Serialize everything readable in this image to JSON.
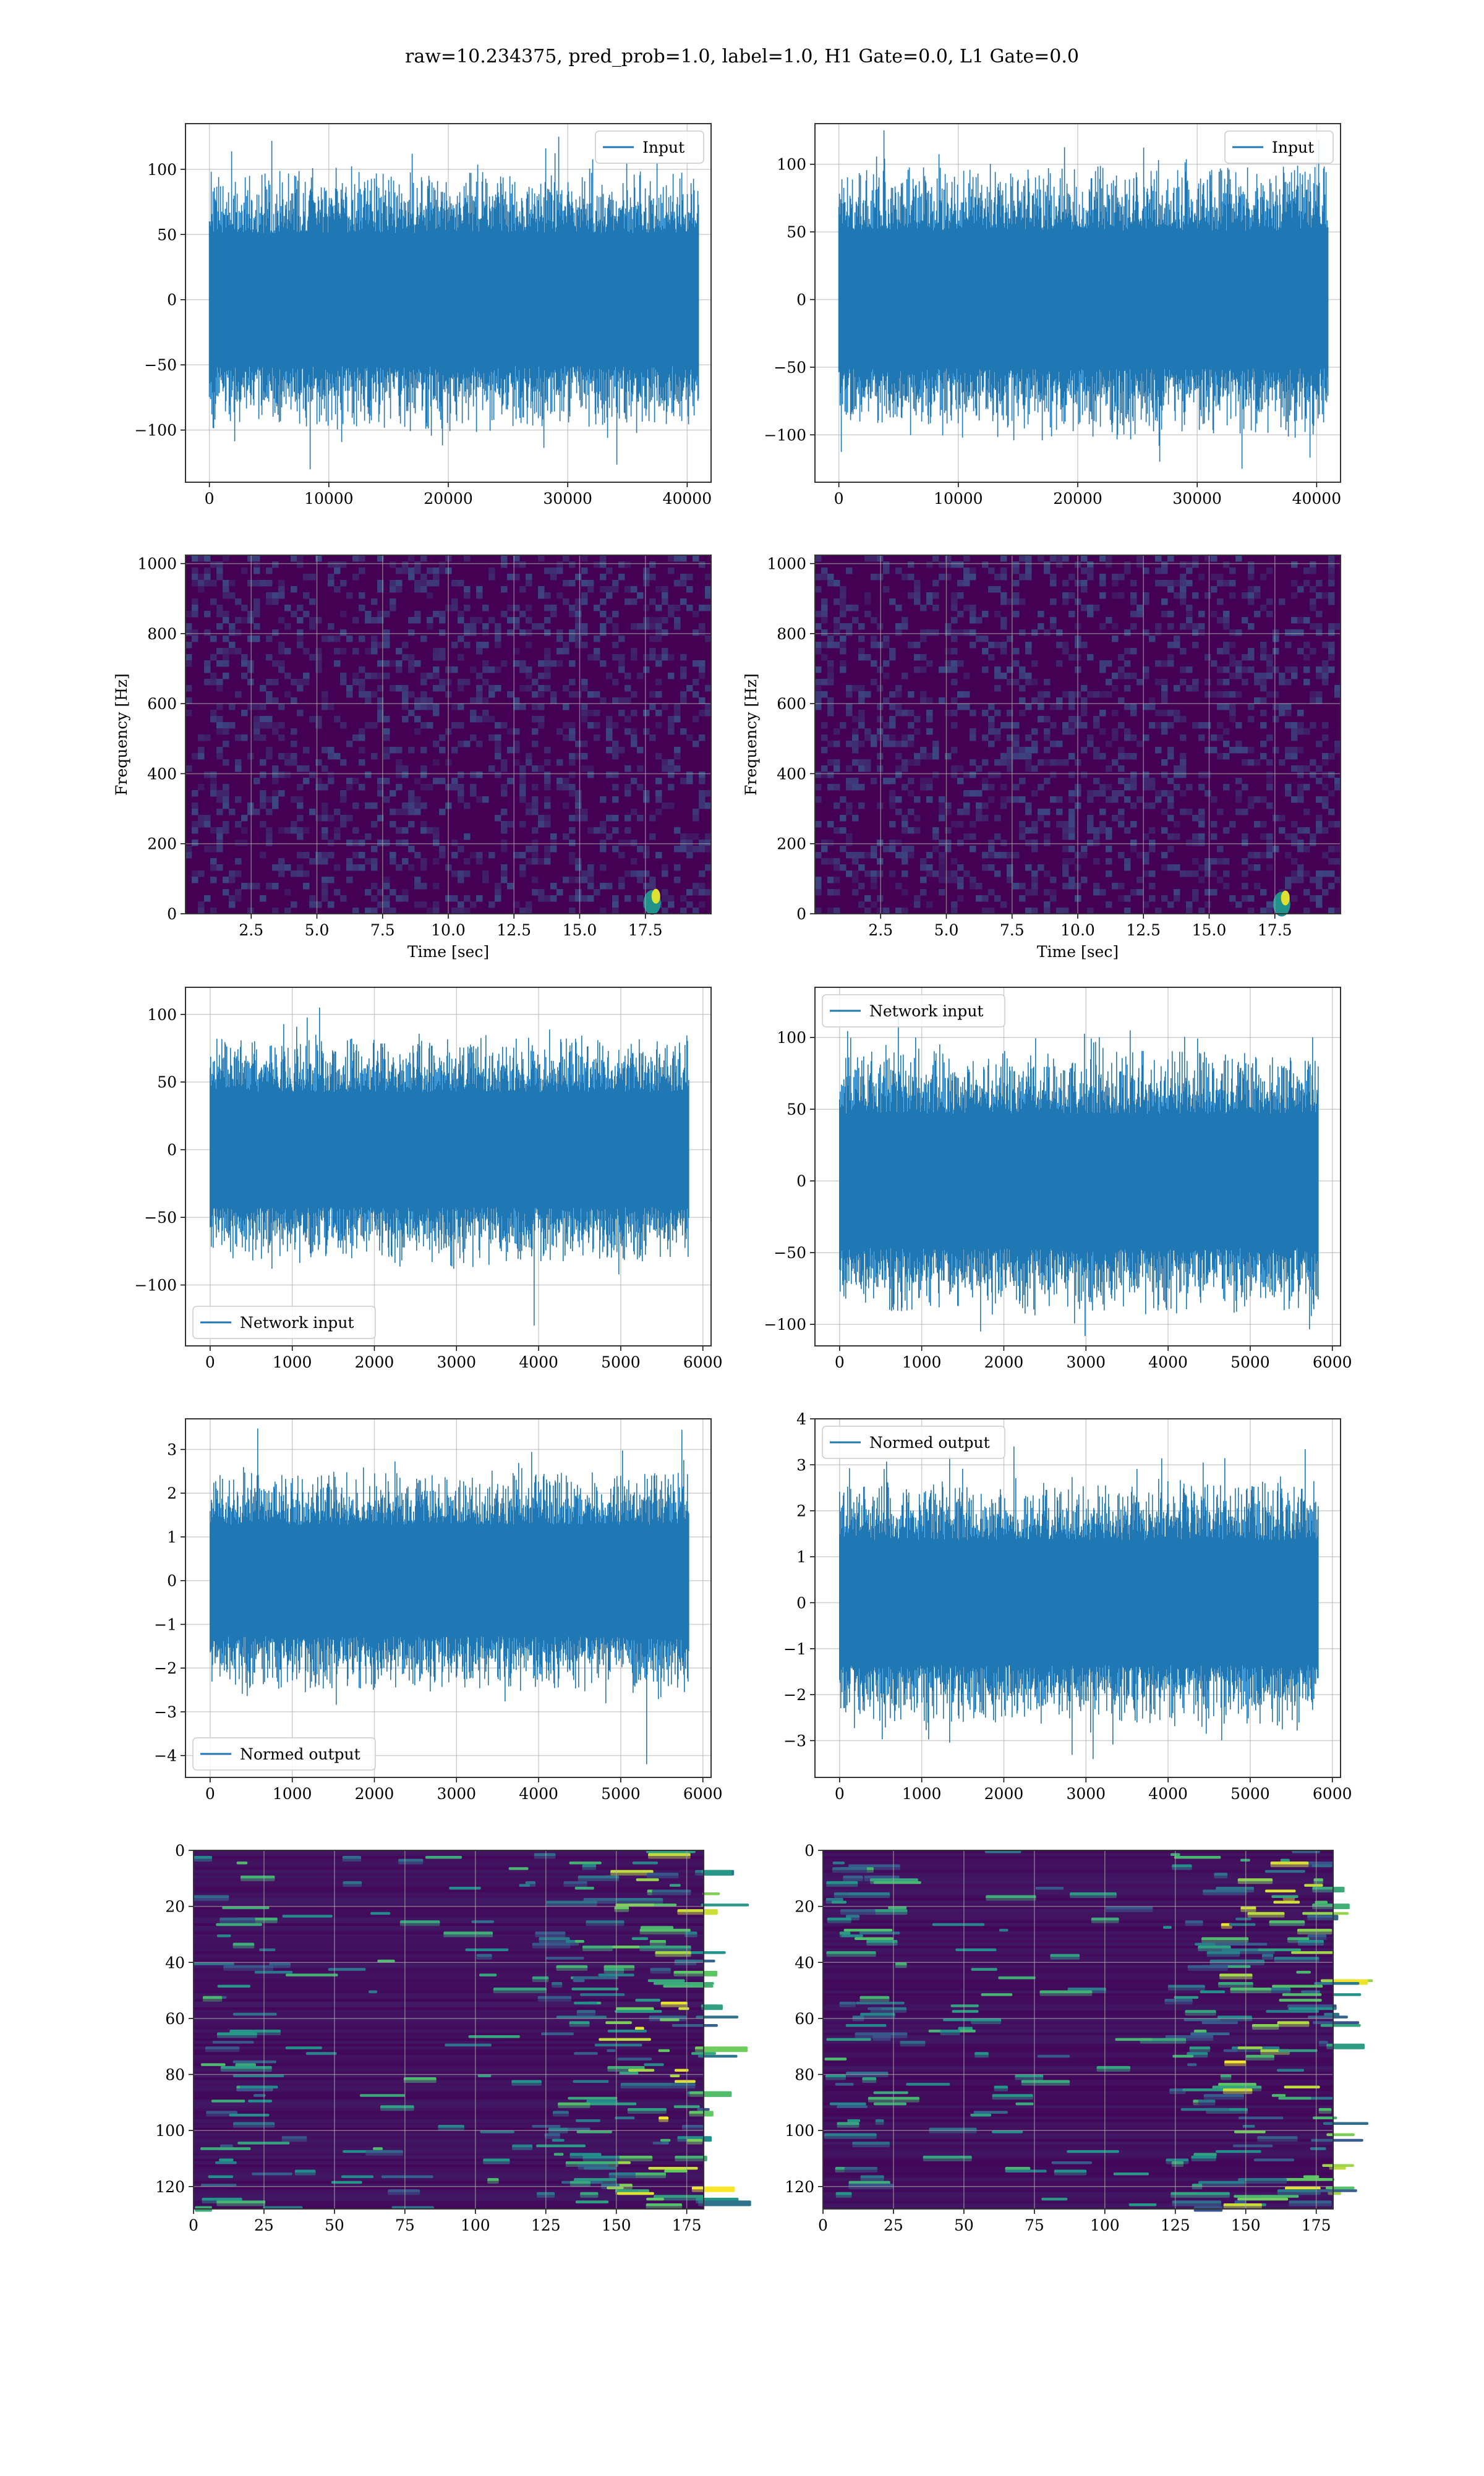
{
  "figure": {
    "title": "raw=10.234375, pred_prob=1.0, label=1.0, H1 Gate=0.0, L1 Gate=0.0"
  },
  "colors": {
    "series": "#1f77b4",
    "grid": "#b0b0b0",
    "viridis_dark": "#440154",
    "viridis_mid": "#21918c",
    "viridis_bright": "#fde725"
  },
  "chart_data": [
    {
      "id": "raw-input-left",
      "type": "line",
      "series": [
        {
          "name": "Input"
        }
      ],
      "legend": "upper right",
      "xlim": [
        -2000,
        42000
      ],
      "ylim": [
        -140,
        135
      ],
      "xticks": [
        0,
        10000,
        20000,
        30000,
        40000
      ],
      "yticks": [
        -100,
        -50,
        0,
        50,
        100
      ],
      "x_extent": [
        0,
        40960
      ],
      "amplitude_envelope": 60,
      "peak_max": 125,
      "peak_min": -130,
      "grid": true
    },
    {
      "id": "raw-input-right",
      "type": "line",
      "series": [
        {
          "name": "Input"
        }
      ],
      "legend": "upper right",
      "xlim": [
        -2000,
        42000
      ],
      "ylim": [
        -135,
        130
      ],
      "xticks": [
        0,
        10000,
        20000,
        30000,
        40000
      ],
      "yticks": [
        -100,
        -50,
        0,
        50,
        100
      ],
      "x_extent": [
        0,
        40960
      ],
      "amplitude_envelope": 60,
      "peak_max": 125,
      "peak_min": -125,
      "grid": true
    },
    {
      "id": "spectrogram-left",
      "type": "heatmap",
      "xlabel": "Time [sec]",
      "ylabel": "Frequency [Hz]",
      "xlim": [
        0,
        20
      ],
      "ylim": [
        0,
        1024
      ],
      "xticks": [
        2.5,
        5.0,
        7.5,
        10.0,
        12.5,
        15.0,
        17.5
      ],
      "yticks": [
        0,
        200,
        400,
        600,
        800,
        1000
      ],
      "colormap": "viridis",
      "bright_feature": {
        "time": 17.9,
        "freq": 50
      },
      "grid": true
    },
    {
      "id": "spectrogram-right",
      "type": "heatmap",
      "xlabel": "Time [sec]",
      "ylabel": "Frequency [Hz]",
      "xlim": [
        0,
        20
      ],
      "ylim": [
        0,
        1024
      ],
      "xticks": [
        2.5,
        5.0,
        7.5,
        10.0,
        12.5,
        15.0,
        17.5
      ],
      "yticks": [
        0,
        200,
        400,
        600,
        800,
        1000
      ],
      "colormap": "viridis",
      "bright_feature": {
        "time": 17.9,
        "freq": 45
      },
      "grid": true
    },
    {
      "id": "network-input-left",
      "type": "line",
      "series": [
        {
          "name": "Network input"
        }
      ],
      "legend": "lower left",
      "xlim": [
        -300,
        6100
      ],
      "ylim": [
        -145,
        120
      ],
      "xticks": [
        0,
        1000,
        2000,
        3000,
        4000,
        5000,
        6000
      ],
      "yticks": [
        -100,
        -50,
        0,
        50,
        100
      ],
      "x_extent": [
        0,
        5830
      ],
      "amplitude_envelope": 50,
      "peak_max": 105,
      "peak_min": -130,
      "grid": true
    },
    {
      "id": "network-input-right",
      "type": "line",
      "series": [
        {
          "name": "Network input"
        }
      ],
      "legend": "upper left",
      "xlim": [
        -300,
        6100
      ],
      "ylim": [
        -115,
        135
      ],
      "xticks": [
        0,
        1000,
        2000,
        3000,
        4000,
        5000,
        6000
      ],
      "yticks": [
        -100,
        -50,
        0,
        50,
        100
      ],
      "x_extent": [
        0,
        5830
      ],
      "amplitude_envelope": 55,
      "peak_max": 105,
      "peak_min": -105,
      "grid": true
    },
    {
      "id": "normed-output-left",
      "type": "line",
      "series": [
        {
          "name": "Normed output"
        }
      ],
      "legend": "lower left",
      "xlim": [
        -300,
        6100
      ],
      "ylim": [
        -4.5,
        3.7
      ],
      "xticks": [
        0,
        1000,
        2000,
        3000,
        4000,
        5000,
        6000
      ],
      "yticks": [
        -4,
        -3,
        -2,
        -1,
        0,
        1,
        2,
        3
      ],
      "x_extent": [
        0,
        5830
      ],
      "amplitude_envelope": 1.5,
      "peak_max": 3.45,
      "peak_min": -4.2,
      "grid": true
    },
    {
      "id": "normed-output-right",
      "type": "line",
      "series": [
        {
          "name": "Normed output"
        }
      ],
      "legend": "upper left",
      "xlim": [
        -300,
        6100
      ],
      "ylim": [
        -3.8,
        4.0
      ],
      "xticks": [
        0,
        1000,
        2000,
        3000,
        4000,
        5000,
        6000
      ],
      "yticks": [
        -3,
        -2,
        -1,
        0,
        1,
        2,
        3,
        4
      ],
      "x_extent": [
        0,
        5830
      ],
      "amplitude_envelope": 1.6,
      "peak_max": 3.4,
      "peak_min": -3.4,
      "grid": true
    },
    {
      "id": "feature-map-left",
      "type": "heatmap",
      "xlim": [
        0,
        181
      ],
      "ylim": [
        128,
        0
      ],
      "xticks": [
        0,
        25,
        50,
        75,
        100,
        125,
        150,
        175
      ],
      "yticks": [
        0,
        20,
        40,
        60,
        80,
        100,
        120
      ],
      "colormap": "viridis",
      "hot_columns": [
        0,
        12,
        125,
        181
      ],
      "grid": true
    },
    {
      "id": "feature-map-right",
      "type": "heatmap",
      "xlim": [
        0,
        181
      ],
      "ylim": [
        128,
        0
      ],
      "xticks": [
        0,
        25,
        50,
        75,
        100,
        125,
        150,
        175
      ],
      "yticks": [
        0,
        20,
        40,
        60,
        80,
        100,
        120
      ],
      "colormap": "viridis",
      "hot_columns": [
        0,
        10,
        125,
        181
      ],
      "grid": true
    }
  ]
}
